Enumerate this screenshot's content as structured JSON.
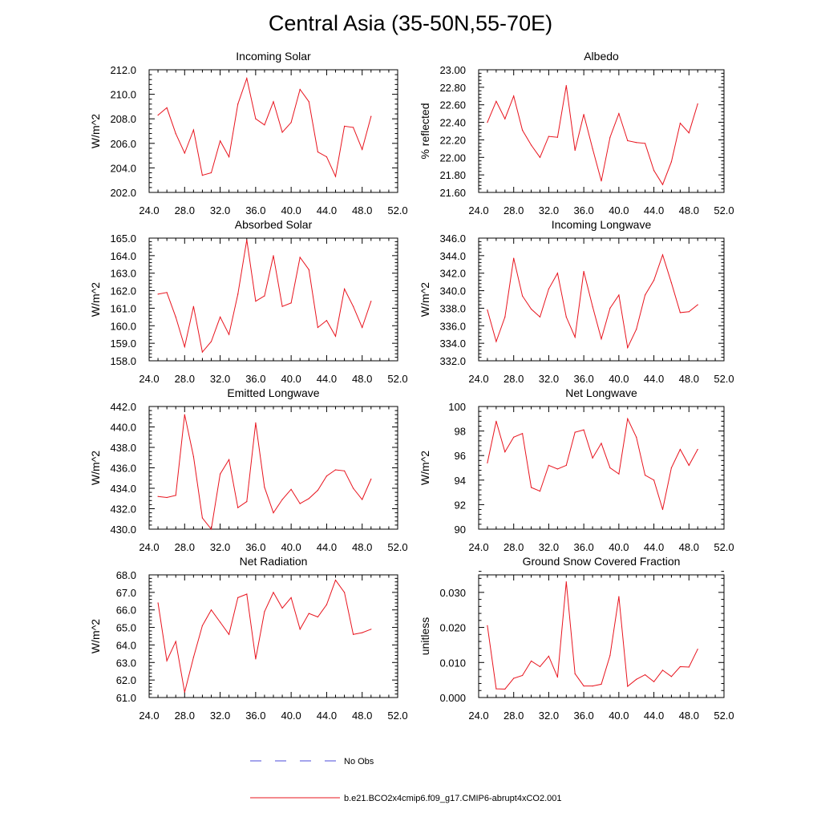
{
  "figure": {
    "title": "Central Asia (35-50N,55-70E)",
    "legend": {
      "obs_label": "No Obs",
      "obs_color": "#4a4ad8",
      "model_label": "b.e21.BCO2x4cmip6.f09_g17.CMIP6-abrupt4xCO2.001",
      "model_color": "#e8141e"
    }
  },
  "chart_data": [
    {
      "type": "line",
      "title": "Incoming Solar",
      "ylabel": "W/m^2",
      "xlim": [
        24,
        52
      ],
      "xticks": [
        "24.0",
        "28.0",
        "32.0",
        "36.0",
        "40.0",
        "44.0",
        "48.0",
        "52.0"
      ],
      "ylim": [
        202,
        212
      ],
      "yticks": [
        "202.0",
        "204.0",
        "206.0",
        "208.0",
        "210.0",
        "212.0"
      ],
      "x": [
        25,
        26,
        27,
        28,
        29,
        30,
        31,
        32,
        33,
        34,
        35,
        36,
        37,
        38,
        39,
        40,
        41,
        42,
        43,
        44,
        45,
        46,
        47,
        48,
        49
      ],
      "values": [
        208.3,
        208.9,
        206.8,
        205.2,
        207.1,
        203.4,
        203.6,
        206.2,
        204.9,
        209.2,
        211.3,
        208.0,
        207.5,
        209.4,
        206.9,
        207.7,
        210.4,
        209.4,
        205.3,
        204.9,
        203.3,
        207.4,
        207.3,
        205.5,
        208.2
      ]
    },
    {
      "type": "line",
      "title": "Albedo",
      "ylabel": "% reflected",
      "xlim": [
        24,
        52
      ],
      "xticks": [
        "24.0",
        "28.0",
        "32.0",
        "36.0",
        "40.0",
        "44.0",
        "48.0",
        "52.0"
      ],
      "ylim": [
        21.6,
        23.0
      ],
      "yticks": [
        "21.60",
        "21.80",
        "22.00",
        "22.20",
        "22.40",
        "22.60",
        "22.80",
        "23.00"
      ],
      "x": [
        25,
        26,
        27,
        28,
        29,
        30,
        31,
        32,
        33,
        34,
        35,
        36,
        37,
        38,
        39,
        40,
        41,
        42,
        43,
        44,
        45,
        46,
        47,
        48,
        49
      ],
      "values": [
        22.4,
        22.64,
        22.44,
        22.7,
        22.31,
        22.14,
        22.0,
        22.24,
        22.23,
        22.82,
        22.08,
        22.49,
        22.1,
        21.73,
        22.23,
        22.5,
        22.19,
        22.17,
        22.16,
        21.85,
        21.69,
        21.95,
        22.39,
        22.28,
        22.61
      ]
    },
    {
      "type": "line",
      "title": "Absorbed Solar",
      "ylabel": "W/m^2",
      "xlim": [
        24,
        52
      ],
      "xticks": [
        "24.0",
        "28.0",
        "32.0",
        "36.0",
        "40.0",
        "44.0",
        "48.0",
        "52.0"
      ],
      "ylim": [
        158,
        165
      ],
      "yticks": [
        "158.0",
        "159.0",
        "160.0",
        "161.0",
        "162.0",
        "163.0",
        "164.0",
        "165.0"
      ],
      "x": [
        25,
        26,
        27,
        28,
        29,
        30,
        31,
        32,
        33,
        34,
        35,
        36,
        37,
        38,
        39,
        40,
        41,
        42,
        43,
        44,
        45,
        46,
        47,
        48,
        49
      ],
      "values": [
        161.8,
        161.9,
        160.5,
        158.8,
        161.1,
        158.5,
        159.1,
        160.5,
        159.5,
        161.8,
        164.9,
        161.4,
        161.7,
        164.0,
        161.1,
        161.3,
        163.9,
        163.2,
        159.9,
        160.3,
        159.4,
        162.1,
        161.1,
        159.9,
        161.4
      ]
    },
    {
      "type": "line",
      "title": "Incoming Longwave",
      "ylabel": "W/m^2",
      "xlim": [
        24,
        52
      ],
      "xticks": [
        "24.0",
        "28.0",
        "32.0",
        "36.0",
        "40.0",
        "44.0",
        "48.0",
        "52.0"
      ],
      "ylim": [
        332,
        346
      ],
      "yticks": [
        "332.0",
        "334.0",
        "336.0",
        "338.0",
        "340.0",
        "342.0",
        "344.0",
        "346.0"
      ],
      "x": [
        25,
        26,
        27,
        28,
        29,
        30,
        31,
        32,
        33,
        34,
        35,
        36,
        37,
        38,
        39,
        40,
        41,
        42,
        43,
        44,
        45,
        46,
        47,
        48,
        49
      ],
      "values": [
        337.8,
        334.2,
        337.0,
        343.7,
        339.4,
        337.9,
        337.0,
        340.2,
        342.0,
        337.0,
        334.7,
        342.2,
        338.2,
        334.5,
        338.0,
        339.5,
        333.5,
        335.6,
        339.5,
        341.2,
        344.1,
        340.9,
        337.5,
        337.6,
        338.4
      ]
    },
    {
      "type": "line",
      "title": "Emitted Longwave",
      "ylabel": "W/m^2",
      "xlim": [
        24,
        52
      ],
      "xticks": [
        "24.0",
        "28.0",
        "32.0",
        "36.0",
        "40.0",
        "44.0",
        "48.0",
        "52.0"
      ],
      "ylim": [
        430,
        442
      ],
      "yticks": [
        "430.0",
        "432.0",
        "434.0",
        "436.0",
        "438.0",
        "440.0",
        "442.0"
      ],
      "x": [
        25,
        26,
        27,
        28,
        29,
        30,
        31,
        32,
        33,
        34,
        35,
        36,
        37,
        38,
        39,
        40,
        41,
        42,
        43,
        44,
        45,
        46,
        47,
        48,
        49
      ],
      "values": [
        433.2,
        433.1,
        433.3,
        441.2,
        437.1,
        431.1,
        430.0,
        435.4,
        436.8,
        432.1,
        432.7,
        440.4,
        434.1,
        431.6,
        432.9,
        433.9,
        432.5,
        433.0,
        433.8,
        435.2,
        435.8,
        435.7,
        434.0,
        432.9,
        434.9
      ]
    },
    {
      "type": "line",
      "title": "Net Longwave",
      "ylabel": "W/m^2",
      "xlim": [
        24,
        52
      ],
      "xticks": [
        "24.0",
        "28.0",
        "32.0",
        "36.0",
        "40.0",
        "44.0",
        "48.0",
        "52.0"
      ],
      "ylim": [
        90,
        100
      ],
      "yticks": [
        "90",
        "92",
        "94",
        "96",
        "98",
        "100"
      ],
      "x": [
        25,
        26,
        27,
        28,
        29,
        30,
        31,
        32,
        33,
        34,
        35,
        36,
        37,
        38,
        39,
        40,
        41,
        42,
        43,
        44,
        45,
        46,
        47,
        48,
        49
      ],
      "values": [
        95.4,
        98.8,
        96.3,
        97.5,
        97.8,
        93.4,
        93.1,
        95.2,
        94.9,
        95.2,
        97.9,
        98.1,
        95.8,
        97.0,
        95.0,
        94.5,
        99.0,
        97.5,
        94.4,
        94.0,
        91.6,
        95.0,
        96.5,
        95.2,
        96.5
      ]
    },
    {
      "type": "line",
      "title": "Net Radiation",
      "ylabel": "W/m^2",
      "xlim": [
        24,
        52
      ],
      "xticks": [
        "24.0",
        "28.0",
        "32.0",
        "36.0",
        "40.0",
        "44.0",
        "48.0",
        "52.0"
      ],
      "ylim": [
        61,
        68
      ],
      "yticks": [
        "61.0",
        "62.0",
        "63.0",
        "64.0",
        "65.0",
        "66.0",
        "67.0",
        "68.0"
      ],
      "x": [
        25,
        26,
        27,
        28,
        29,
        30,
        31,
        32,
        33,
        34,
        35,
        36,
        37,
        38,
        39,
        40,
        41,
        42,
        43,
        44,
        45,
        46,
        47,
        48,
        49
      ],
      "values": [
        66.4,
        63.1,
        64.2,
        61.3,
        63.3,
        65.1,
        66.0,
        65.3,
        64.6,
        66.7,
        66.9,
        63.2,
        65.9,
        67.0,
        66.1,
        66.7,
        64.9,
        65.8,
        65.6,
        66.3,
        67.7,
        67.0,
        64.6,
        64.7,
        64.9
      ]
    },
    {
      "type": "line",
      "title": "Ground Snow Covered Fraction",
      "ylabel": "unitless",
      "xlim": [
        24,
        52
      ],
      "xticks": [
        "24.0",
        "28.0",
        "32.0",
        "36.0",
        "40.0",
        "44.0",
        "48.0",
        "52.0"
      ],
      "ylim": [
        0,
        0.035
      ],
      "yticks": [
        "0.000",
        "0.010",
        "0.020",
        "0.030"
      ],
      "ytick_values": [
        0,
        0.01,
        0.02,
        0.03
      ],
      "x": [
        25,
        26,
        27,
        28,
        29,
        30,
        31,
        32,
        33,
        34,
        35,
        36,
        37,
        38,
        39,
        40,
        41,
        42,
        43,
        44,
        45,
        46,
        47,
        48,
        49
      ],
      "values": [
        0.0205,
        0.0025,
        0.0024,
        0.0055,
        0.0063,
        0.0104,
        0.0088,
        0.0118,
        0.0058,
        0.033,
        0.0068,
        0.0033,
        0.0033,
        0.0038,
        0.012,
        0.0288,
        0.0032,
        0.0052,
        0.0065,
        0.0045,
        0.0078,
        0.006,
        0.0088,
        0.0087,
        0.0138
      ]
    }
  ]
}
